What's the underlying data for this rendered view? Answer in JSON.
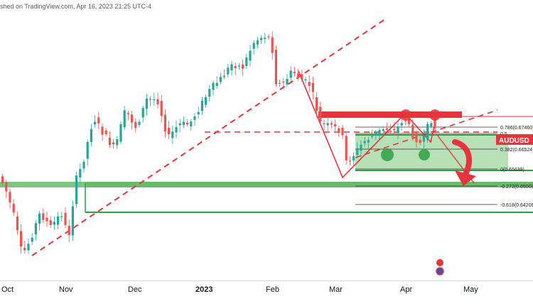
{
  "header": {
    "published_text": "shed on TradingView.com, Apr 16, 2023 21:25 UTC-4"
  },
  "symbol_label": "AUDUSD",
  "fib_levels": [
    {
      "ratio": "0.786",
      "price": "0.67460",
      "text": "0.786(0.67460)"
    },
    {
      "ratio": "0.5",
      "price": "",
      "text": "0.5"
    },
    {
      "ratio": "0.382",
      "price": "0.66524",
      "text": "0.382(0.66524)"
    },
    {
      "ratio": "0",
      "price": "0.65639",
      "text": "0(0.65639)"
    },
    {
      "ratio": "-0.272",
      "price": "0.65009",
      "text": "-0.272(0.65009)"
    },
    {
      "ratio": "-0.618",
      "price": "0.64208",
      "text": "-0.618(0.64208)"
    }
  ],
  "time_axis": {
    "labels": [
      "Oct",
      "Nov",
      "Dec",
      "2023",
      "Feb",
      "Mar",
      "Apr",
      "May"
    ]
  },
  "colors": {
    "up": "#26a69a",
    "down": "#ef5350",
    "annotation_red": "#e8323c",
    "annotation_green": "#2ea043",
    "zone_green": "#9fd69f"
  },
  "chart_data": {
    "type": "candlestick",
    "symbol": "AUDUSD",
    "timeframe": "1D",
    "fib_retracement_levels": [
      0.786,
      0.5,
      0.382,
      0,
      -0.272,
      -0.618
    ],
    "fib_prices": [
      0.6746,
      null,
      0.66524,
      0.65639,
      0.65009,
      0.64208
    ]
  }
}
